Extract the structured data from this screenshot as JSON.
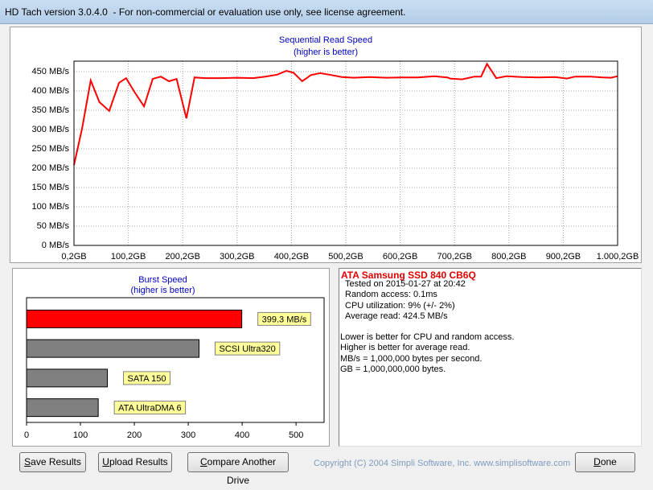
{
  "window": {
    "title": "HD Tach version 3.0.4.0  - For non-commercial or evaluation use only, see license agreement."
  },
  "chart_data": [
    {
      "type": "line",
      "title": "Sequential Read Speed",
      "subtitle": "(higher is better)",
      "x": [
        0.2,
        15,
        31,
        47,
        65,
        83,
        96,
        112,
        129,
        145,
        160,
        175,
        189,
        207,
        222,
        241,
        271,
        300,
        330,
        352,
        374,
        391,
        404,
        420,
        436,
        453,
        470,
        493,
        515,
        544,
        574,
        604,
        633,
        663,
        687,
        692,
        714,
        737,
        749,
        760,
        777,
        796,
        825,
        855,
        885,
        907,
        922,
        951,
        973,
        988,
        1000.2
      ],
      "series": [
        {
          "color": "#ff0000",
          "values": [
            208,
            302,
            427,
            371,
            348,
            421,
            433,
            396,
            360,
            431,
            437,
            425,
            431,
            329,
            435,
            433,
            433,
            434,
            433,
            437,
            442,
            452,
            447,
            425,
            441,
            446,
            442,
            436,
            434,
            436,
            434,
            435,
            435,
            438,
            435,
            432,
            430,
            437,
            437,
            470,
            433,
            438,
            436,
            435,
            436,
            432,
            437,
            437,
            435,
            434,
            438
          ]
        }
      ],
      "xlim": [
        0.2,
        1000.2
      ],
      "ylim": [
        0,
        477
      ],
      "xticks": [
        {
          "value": 0.2,
          "label": "0,2GB"
        },
        {
          "value": 100.2,
          "label": "100,2GB"
        },
        {
          "value": 200.2,
          "label": "200,2GB"
        },
        {
          "value": 300.2,
          "label": "300,2GB"
        },
        {
          "value": 400.2,
          "label": "400,2GB"
        },
        {
          "value": 500.2,
          "label": "500,2GB"
        },
        {
          "value": 600.2,
          "label": "600,2GB"
        },
        {
          "value": 700.2,
          "label": "700,2GB"
        },
        {
          "value": 800.2,
          "label": "800,2GB"
        },
        {
          "value": 900.2,
          "label": "900,2GB"
        },
        {
          "value": 1000.2,
          "label": "1.000,2GB"
        }
      ],
      "yticks": [
        {
          "value": 0,
          "label": "0 MB/s"
        },
        {
          "value": 50,
          "label": "50 MB/s"
        },
        {
          "value": 100,
          "label": "100 MB/s"
        },
        {
          "value": 150,
          "label": "150 MB/s"
        },
        {
          "value": 200,
          "label": "200 MB/s"
        },
        {
          "value": 250,
          "label": "250 MB/s"
        },
        {
          "value": 300,
          "label": "300 MB/s"
        },
        {
          "value": 350,
          "label": "350 MB/s"
        },
        {
          "value": 400,
          "label": "400 MB/s"
        },
        {
          "value": 450,
          "label": "450 MB/s"
        }
      ],
      "grid": true
    },
    {
      "type": "bar",
      "orientation": "horizontal",
      "title": "Burst Speed",
      "subtitle": "(higher is better)",
      "categories": [
        null,
        "SCSI Ultra320",
        "SATA 150",
        "ATA UltraDMA 6"
      ],
      "values": [
        399.3,
        320,
        150,
        133
      ],
      "value_labels": [
        "399.3 MB/s",
        null,
        null,
        null
      ],
      "colors": [
        "#ff0000",
        "#808080",
        "#808080",
        "#808080"
      ],
      "xlim": [
        0,
        552
      ],
      "xticks": [
        0,
        100,
        200,
        300,
        400,
        500
      ],
      "grid": false
    }
  ],
  "info": {
    "title": "ATA Samsung SSD 840 CB6Q",
    "lines": [
      "Tested on 2015-01-27 at 20:42",
      "Random access: 0.1ms",
      "CPU utilization: 9% (+/- 2%)",
      "Average read: 424.5 MB/s"
    ],
    "notes": [
      "Lower is better for CPU and random access.",
      "Higher is better for average read.",
      "MB/s = 1,000,000 bytes per second.",
      "GB = 1,000,000,000 bytes."
    ]
  },
  "buttons": [
    "Save Results",
    "Upload Results",
    "Compare Another Drive",
    "Done"
  ],
  "copyright": "Copyright (C) 2004 Simpli Software, Inc. www.simplisoftware.com"
}
